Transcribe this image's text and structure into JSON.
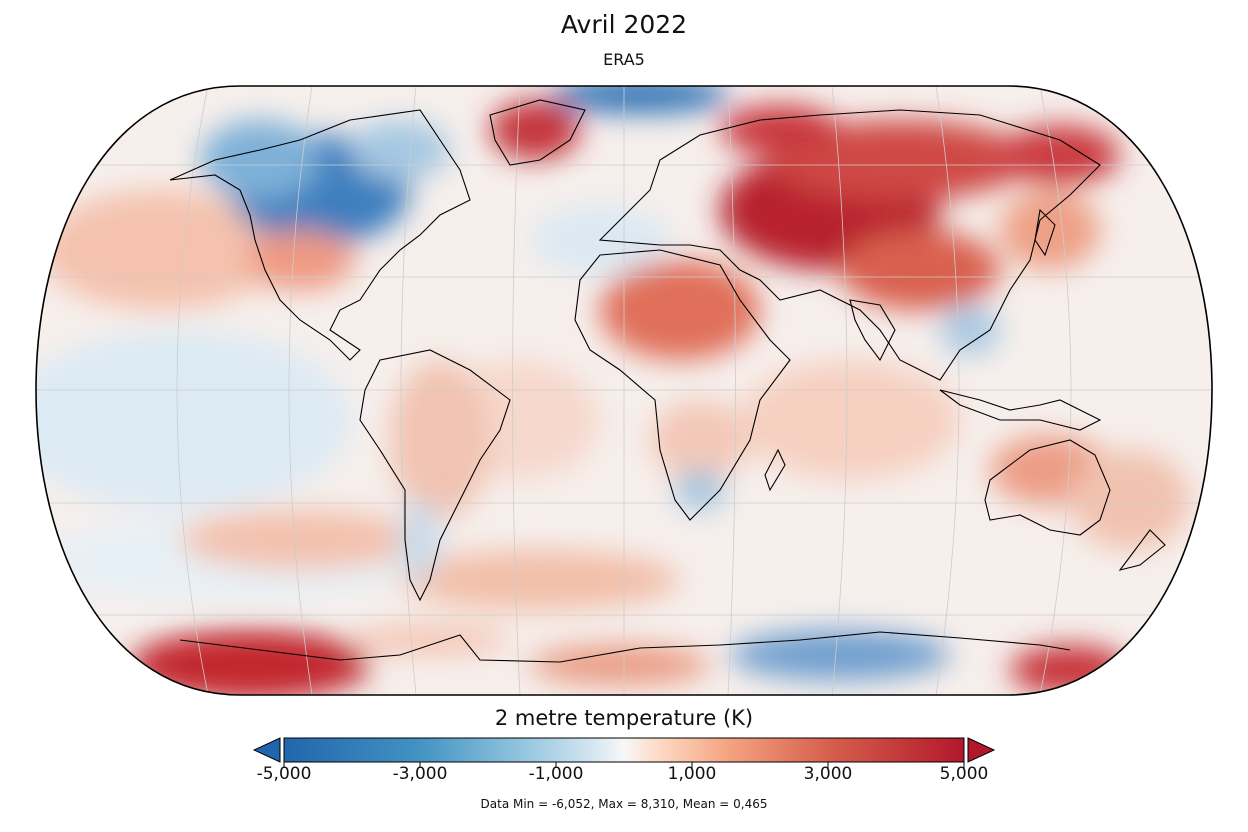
{
  "title": "Avril 2022",
  "subtitle": "ERA5",
  "map": {
    "projection": "Robinson",
    "variable": "2 metre temperature anomaly",
    "colormap": "RdBu_r",
    "colors": {
      "cold": "#2a6fb4",
      "neutral": "#f7f7f7",
      "warm": "#b2182b",
      "coast": "#000000",
      "grid": "#cccccc"
    }
  },
  "colorbar": {
    "label": "2 metre temperature (K)",
    "min": -5,
    "max": 5,
    "extend": "both",
    "ticks": [
      "-5,000",
      "-3,000",
      "-1,000",
      "1,000",
      "3,000",
      "5,000"
    ],
    "tick_values": [
      -5,
      -3,
      -1,
      1,
      3,
      5
    ]
  },
  "stats": "Data Min = -6,052, Max = 8,310, Mean = 0,465"
}
